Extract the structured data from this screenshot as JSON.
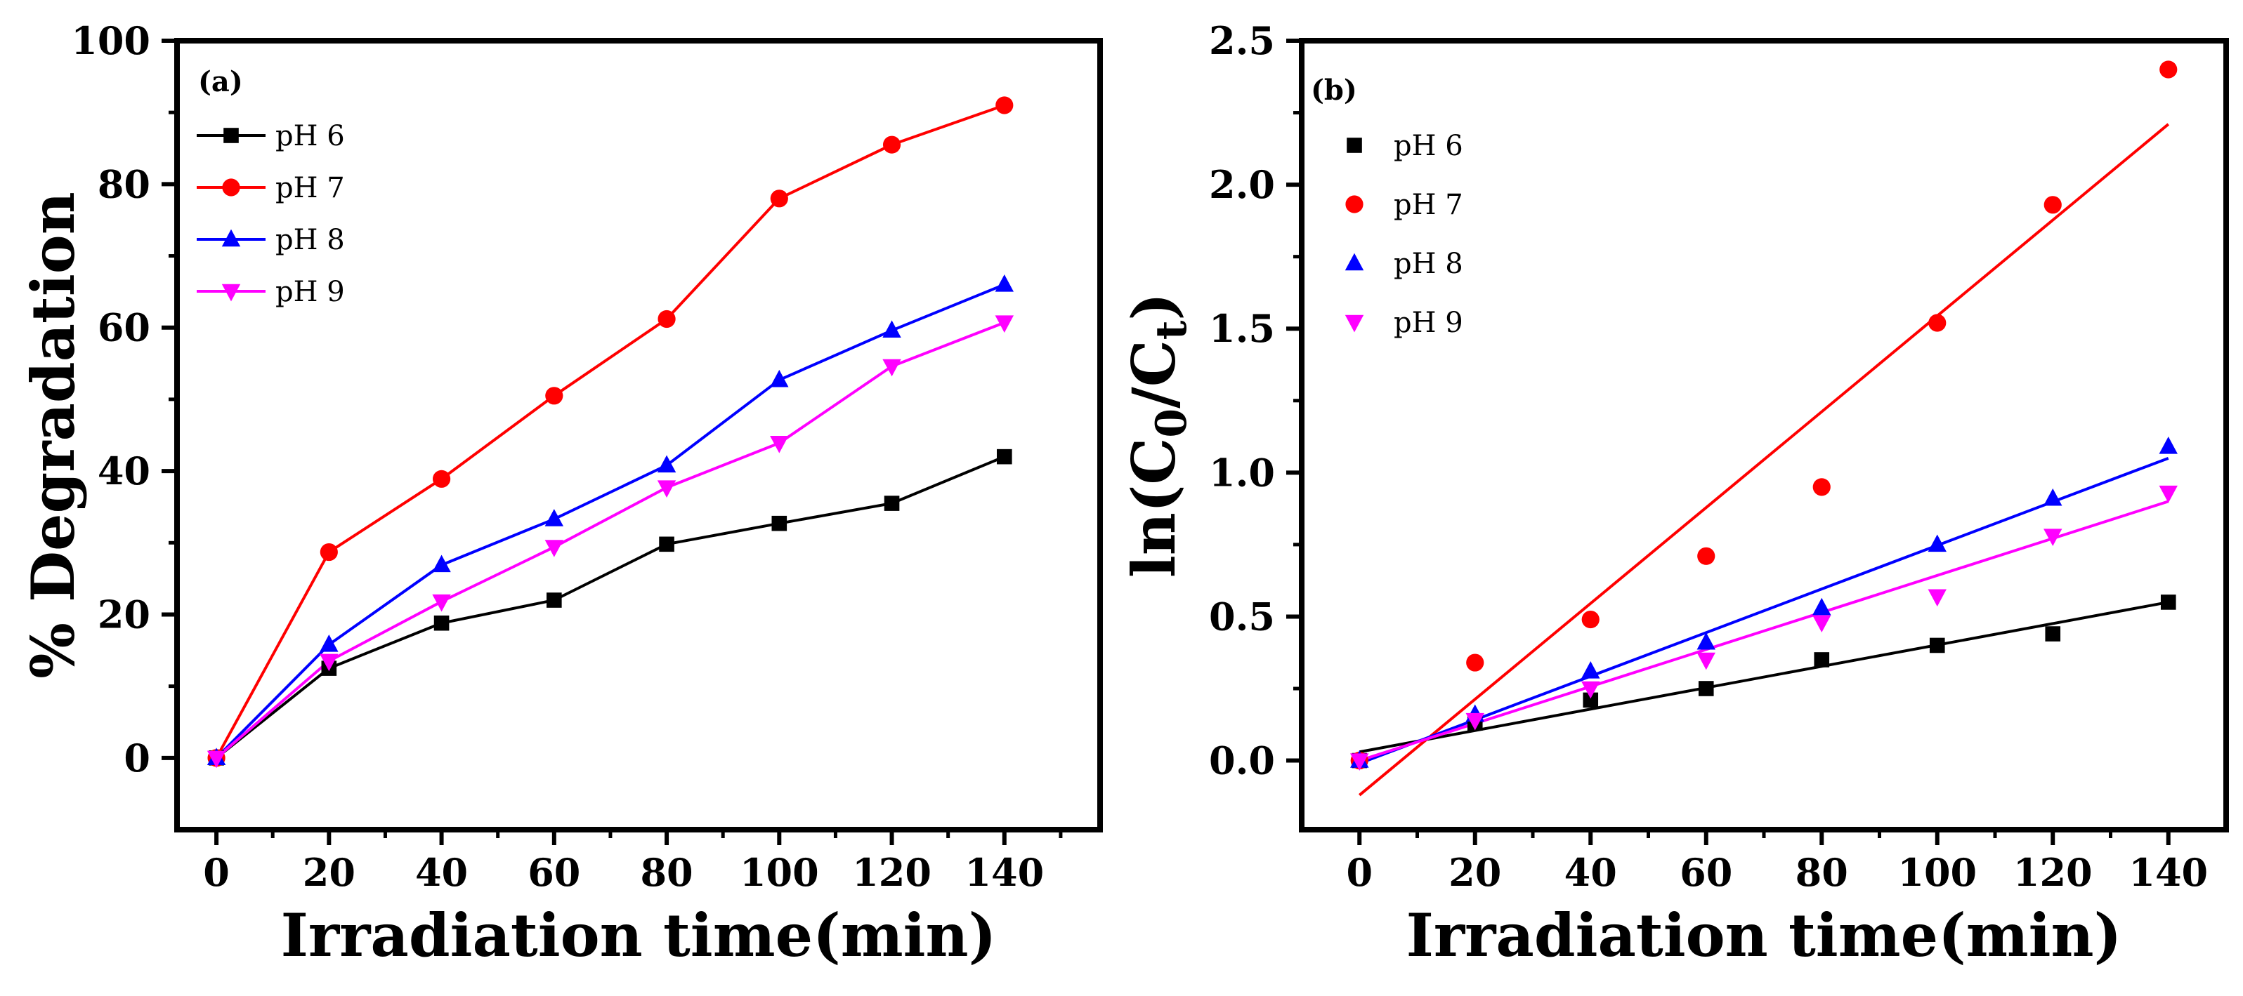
{
  "chart_data": [
    {
      "type": "line",
      "panel_label": "(a)",
      "xlabel": "Irradiation time(min)",
      "ylabel": "% Degradation",
      "xlim": [
        -7,
        157
      ],
      "ylim": [
        -10,
        100
      ],
      "xticks": [
        0,
        20,
        40,
        60,
        80,
        100,
        120,
        140
      ],
      "xtick_labels": [
        "0",
        "20",
        "40",
        "60",
        "80",
        "100",
        "120",
        "140"
      ],
      "yticks": [
        0,
        20,
        40,
        60,
        80,
        100
      ],
      "ytick_labels": [
        "0",
        "20",
        "40",
        "60",
        "80",
        "100"
      ],
      "legend_position": "top-left",
      "x": [
        0,
        20,
        40,
        60,
        80,
        100,
        120,
        140
      ],
      "series": [
        {
          "name": "pH 6",
          "color": "#000000",
          "marker": "square",
          "values": [
            0,
            12.5,
            18.8,
            22.0,
            29.8,
            32.7,
            35.5,
            42.0
          ]
        },
        {
          "name": "pH 7",
          "color": "#ff0000",
          "marker": "circle",
          "values": [
            0,
            28.7,
            38.9,
            50.5,
            61.2,
            78.0,
            85.5,
            91.0
          ]
        },
        {
          "name": "pH 8",
          "color": "#0000ff",
          "marker": "triangle-up",
          "values": [
            0,
            15.8,
            26.9,
            33.3,
            40.8,
            52.7,
            59.6,
            66.0
          ]
        },
        {
          "name": "pH 9",
          "color": "#ff00ff",
          "marker": "triangle-down",
          "values": [
            0,
            13.5,
            21.8,
            29.4,
            37.7,
            43.9,
            54.6,
            60.7
          ]
        }
      ]
    },
    {
      "type": "scatter",
      "panel_label": "(b)",
      "xlabel": "Irradiation time(min)",
      "ylabel": "ln(C0/Ct)",
      "xlim": [
        -10,
        150
      ],
      "ylim": [
        -0.24,
        2.5
      ],
      "xticks": [
        0,
        20,
        40,
        60,
        80,
        100,
        120,
        140
      ],
      "xtick_labels": [
        "0",
        "20",
        "40",
        "60",
        "80",
        "100",
        "120",
        "140"
      ],
      "yticks": [
        0,
        0.5,
        1.0,
        1.5,
        2.0,
        2.5
      ],
      "ytick_labels": [
        "0.0",
        "0.5",
        "1.0",
        "1.5",
        "2.0",
        "2.5"
      ],
      "legend_position": "top-left",
      "x": [
        0,
        20,
        40,
        60,
        80,
        100,
        120,
        140
      ],
      "series": [
        {
          "name": "pH 6",
          "color": "#000000",
          "marker": "square",
          "values": [
            0,
            0.13,
            0.21,
            0.25,
            0.35,
            0.4,
            0.44,
            0.55
          ],
          "fit": [
            0.03,
            0.55
          ]
        },
        {
          "name": "pH 7",
          "color": "#ff0000",
          "marker": "circle",
          "values": [
            0,
            0.34,
            0.49,
            0.71,
            0.95,
            1.52,
            1.93,
            2.4
          ],
          "fit": [
            -0.12,
            2.21
          ]
        },
        {
          "name": "pH 8",
          "color": "#0000ff",
          "marker": "triangle-up",
          "values": [
            0,
            0.16,
            0.31,
            0.41,
            0.53,
            0.75,
            0.91,
            1.09
          ],
          "fit": [
            -0.01,
            1.05
          ]
        },
        {
          "name": "pH 9",
          "color": "#ff00ff",
          "marker": "triangle-down",
          "values": [
            0,
            0.14,
            0.25,
            0.35,
            0.48,
            0.57,
            0.78,
            0.93
          ],
          "fit": [
            0.0,
            0.9
          ]
        }
      ]
    }
  ]
}
